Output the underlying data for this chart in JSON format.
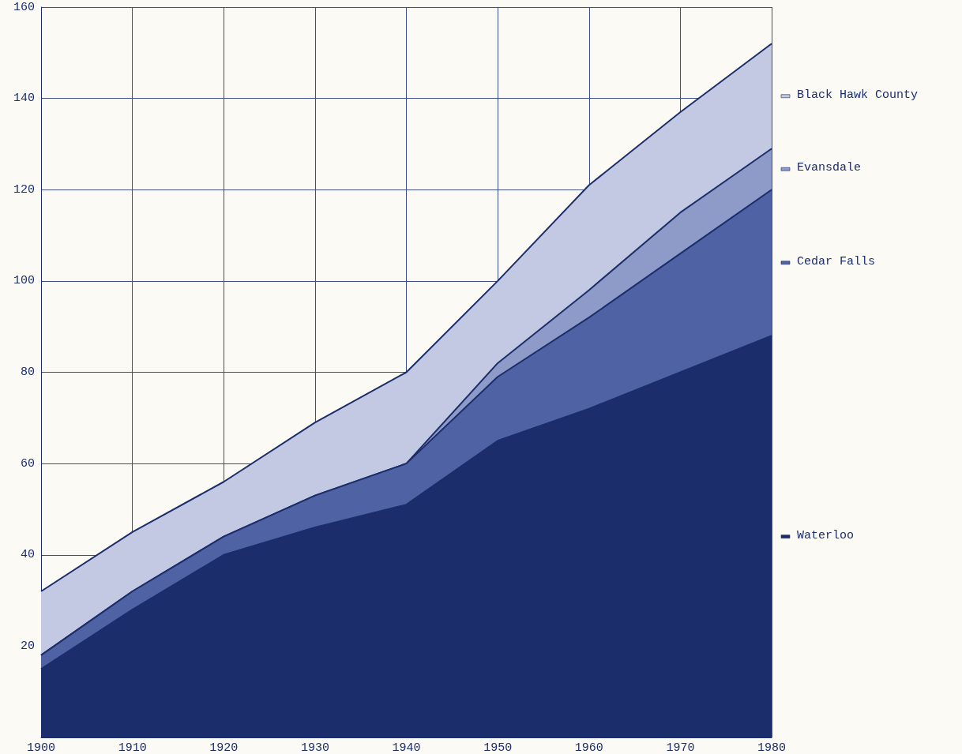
{
  "chart_data": {
    "type": "area",
    "stacked": true,
    "x": [
      1900,
      1910,
      1920,
      1930,
      1940,
      1950,
      1960,
      1970,
      1980
    ],
    "series": [
      {
        "name": "Waterloo",
        "color": "#1b2d6b",
        "values": [
          15,
          28,
          40,
          46,
          51,
          65,
          72,
          80,
          88
        ]
      },
      {
        "name": "Cedar Falls",
        "color": "#4f62a3",
        "values": [
          3,
          4,
          4,
          7,
          9,
          14,
          20,
          26,
          32
        ]
      },
      {
        "name": "Evansdale",
        "color": "#8e9ac8",
        "values": [
          0,
          0,
          0,
          0,
          0,
          3,
          6,
          9,
          9
        ]
      },
      {
        "name": "Black Hawk County",
        "color": "#c3c9e2",
        "values": [
          14,
          13,
          12,
          16,
          20,
          18,
          23,
          22,
          23
        ]
      }
    ],
    "xlim": [
      1900,
      1980
    ],
    "xticks": [
      1900,
      1910,
      1920,
      1930,
      1940,
      1950,
      1960,
      1970,
      1980
    ],
    "ylim": [
      0,
      160
    ],
    "yticks": [
      {
        "value": 0,
        "label": null
      },
      20,
      40,
      60,
      80,
      100,
      120,
      140,
      160
    ],
    "grid": true,
    "legend": "right",
    "marker": "none",
    "line_style": "solid"
  }
}
